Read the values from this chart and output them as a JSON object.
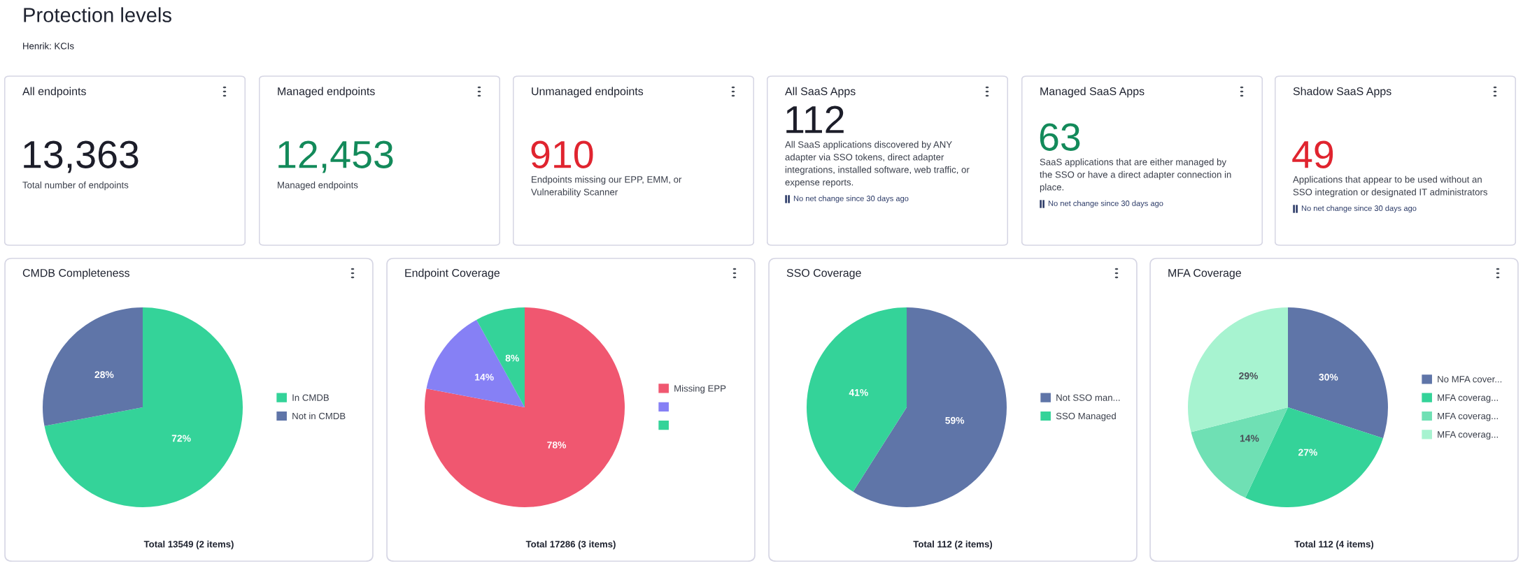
{
  "chart_data": [
    {
      "type": "other",
      "title": "Protection levels",
      "subtitle": "Henrik: KCIs"
    },
    {
      "type": "other",
      "title": "All endpoints",
      "values": [
        13363
      ],
      "value_labels": [
        "13,363"
      ],
      "color": "#1c1d29",
      "annotations": [
        "Total number of endpoints"
      ]
    },
    {
      "type": "other",
      "title": "Managed endpoints",
      "values": [
        12453
      ],
      "value_labels": [
        "12,453"
      ],
      "color": "#138a5a",
      "annotations": [
        "Managed endpoints"
      ]
    },
    {
      "type": "other",
      "title": "Unmanaged endpoints",
      "values": [
        910
      ],
      "value_labels": [
        "910"
      ],
      "color": "#e0242f",
      "annotations": [
        "Endpoints missing our EPP, EMM, or Vulnerability Scanner"
      ]
    },
    {
      "type": "other",
      "title": "All SaaS Apps",
      "values": [
        112
      ],
      "value_labels": [
        "112"
      ],
      "color": "#1c1d29",
      "annotations": [
        "All SaaS applications discovered by ANY adapter via SSO tokens, direct adapter integrations, installed software, web traffic, or expense reports.",
        "No net change since 30 days ago"
      ]
    },
    {
      "type": "other",
      "title": "Managed SaaS Apps",
      "values": [
        63
      ],
      "value_labels": [
        "63"
      ],
      "color": "#138a5a",
      "annotations": [
        "SaaS applications that are either managed by the SSO or have a direct adapter connection in place.",
        "No net change since 30 days ago"
      ]
    },
    {
      "type": "other",
      "title": "Shadow SaaS Apps",
      "values": [
        49
      ],
      "value_labels": [
        "49"
      ],
      "color": "#e0242f",
      "annotations": [
        "Applications that appear to be used without an SSO integration or designated IT administrators",
        "No net change since 30 days ago"
      ]
    },
    {
      "type": "pie",
      "title": "CMDB Completeness",
      "categories": [
        "In CMDB",
        "Not in CMDB"
      ],
      "values": [
        72,
        28
      ],
      "value_labels": [
        "72%",
        "28%"
      ],
      "colors": [
        "#34d399",
        "#5f75a8"
      ],
      "legend": "right",
      "annotations": [
        "Total 13549 (2 items)"
      ]
    },
    {
      "type": "pie",
      "title": "Endpoint Coverage",
      "categories": [
        "Missing EPP",
        null,
        null
      ],
      "values": [
        78,
        14,
        8
      ],
      "value_labels": [
        "78%",
        "14%",
        "8%"
      ],
      "colors": [
        "#f05770",
        "#8680f5",
        "#34d399"
      ],
      "legend": "right",
      "annotations": [
        "Total 17286 (3 items)"
      ]
    },
    {
      "type": "pie",
      "title": "SSO Coverage",
      "categories": [
        "Not SSO man...",
        "SSO Managed"
      ],
      "values": [
        59,
        41
      ],
      "value_labels": [
        "59%",
        "41%"
      ],
      "colors": [
        "#5f75a8",
        "#34d399"
      ],
      "legend": "right",
      "annotations": [
        "Total 112 (2 items)"
      ]
    },
    {
      "type": "pie",
      "title": "MFA Coverage",
      "categories": [
        "No MFA cover...",
        "MFA coverag...",
        "MFA coverag...",
        "MFA coverag..."
      ],
      "values": [
        30,
        27,
        14,
        29
      ],
      "value_labels": [
        "30%",
        "27%",
        "14%",
        "29%"
      ],
      "colors": [
        "#5f75a8",
        "#34d399",
        "#6fe0b4",
        "#a7f3d0"
      ],
      "legend": "right",
      "annotations": [
        "Total 112 (4 items)"
      ]
    }
  ]
}
